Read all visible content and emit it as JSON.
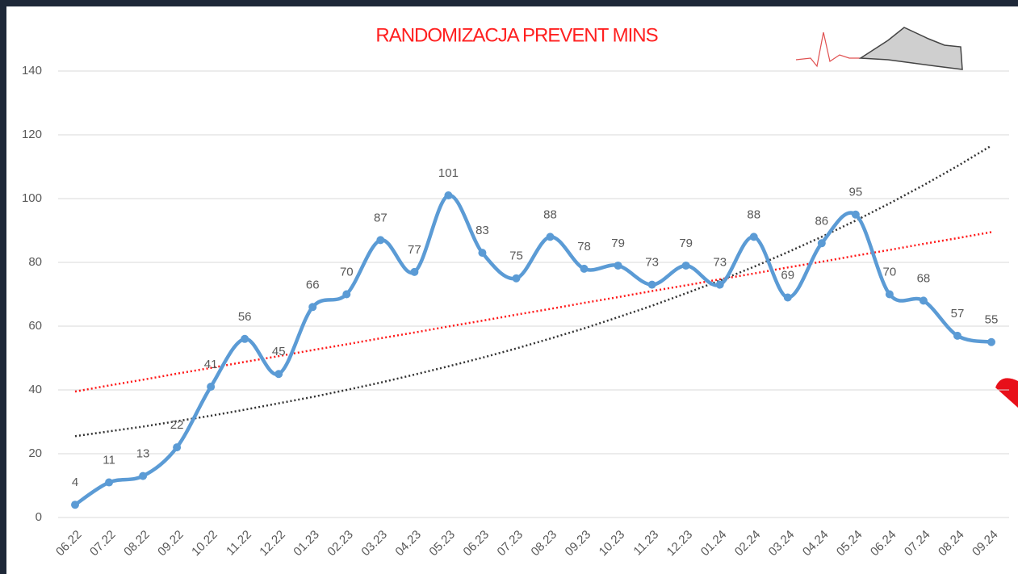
{
  "chart_data": {
    "type": "line",
    "title": "RANDOMIZACJA PREVENT MINS",
    "categories": [
      "06.22",
      "07.22",
      "08.22",
      "09.22",
      "10.22",
      "11.22",
      "12.22",
      "01.23",
      "02.23",
      "03.23",
      "04.23",
      "05.23",
      "06.23",
      "07.23",
      "08.23",
      "09.23",
      "10.23",
      "11.23",
      "12.23",
      "01.24",
      "02.24",
      "03.24",
      "04.24",
      "05.24",
      "06.24",
      "07.24",
      "08.24",
      "09.24"
    ],
    "series": [
      {
        "color": "#5b9bd5",
        "values": [
          4,
          11,
          13,
          22,
          41,
          56,
          45,
          66,
          70,
          87,
          77,
          101,
          83,
          75,
          88,
          78,
          79,
          73,
          79,
          73,
          88,
          69,
          86,
          95,
          70,
          68,
          57,
          55
        ]
      }
    ],
    "trendlines": [
      {
        "kind": "linear",
        "color": "#ff1a1a",
        "values": [
          39.5,
          41.4,
          43.2,
          45.1,
          46.9,
          48.8,
          50.6,
          52.5,
          54.3,
          56.2,
          58.0,
          59.9,
          61.7,
          63.6,
          65.4,
          67.3,
          69.1,
          71.0,
          72.8,
          74.7,
          76.5,
          78.4,
          80.2,
          82.1,
          83.9,
          85.8,
          87.6,
          89.5
        ]
      },
      {
        "kind": "exponential",
        "color": "#333333",
        "values": [
          25.5,
          27.0,
          28.5,
          30.2,
          31.9,
          33.8,
          35.8,
          37.8,
          40.0,
          42.3,
          44.8,
          47.4,
          50.1,
          53.0,
          56.1,
          59.3,
          62.8,
          66.4,
          70.3,
          74.3,
          78.6,
          83.2,
          88.0,
          93.1,
          98.5,
          104.2,
          110.2,
          116.6
        ]
      }
    ],
    "ylim": [
      0,
      140
    ],
    "yticks": [
      0,
      20,
      40,
      60,
      80,
      100,
      120,
      140
    ],
    "grid": true,
    "smooth": true,
    "data_labels": true
  }
}
